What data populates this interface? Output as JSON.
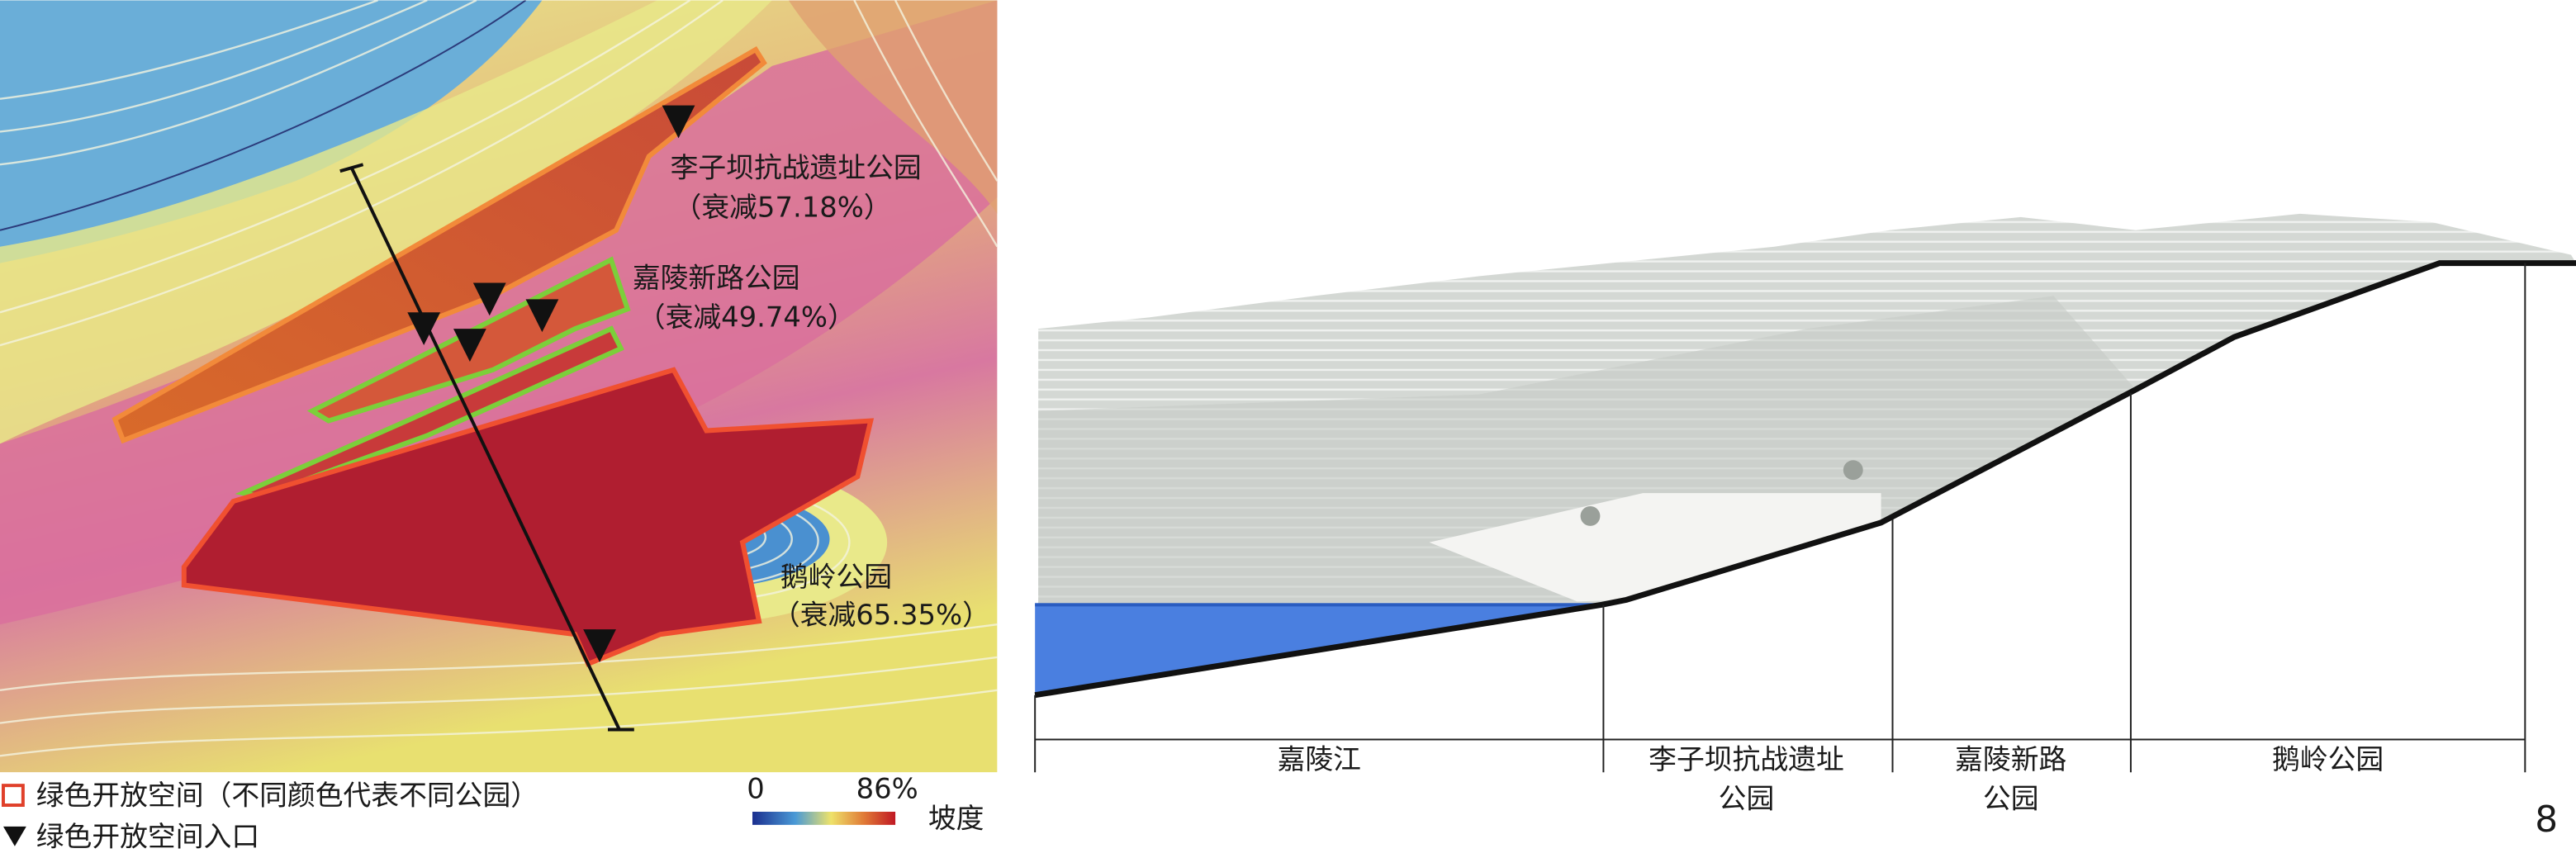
{
  "map": {
    "parks": [
      {
        "name": "李子坝抗战遗址公园",
        "note": "（衰减57.18%）"
      },
      {
        "name": "嘉陵新路公园",
        "note": "（衰减49.74%）"
      },
      {
        "name": "鹅岭公园",
        "note": "（衰减65.35%）"
      }
    ],
    "legend": {
      "space": "绿色开放空间（不同颜色代表不同公园）",
      "entrance": "绿色开放空间入口",
      "scale_min": "0",
      "scale_max": "86%",
      "scale_label": "坡度"
    }
  },
  "section": {
    "zones": [
      {
        "lines": [
          "嘉陵江"
        ]
      },
      {
        "lines": [
          "李子坝抗战遗址",
          "公园"
        ]
      },
      {
        "lines": [
          "嘉陵新路",
          "公园"
        ]
      },
      {
        "lines": [
          "鹅岭公园"
        ]
      }
    ]
  },
  "page_number": "8"
}
